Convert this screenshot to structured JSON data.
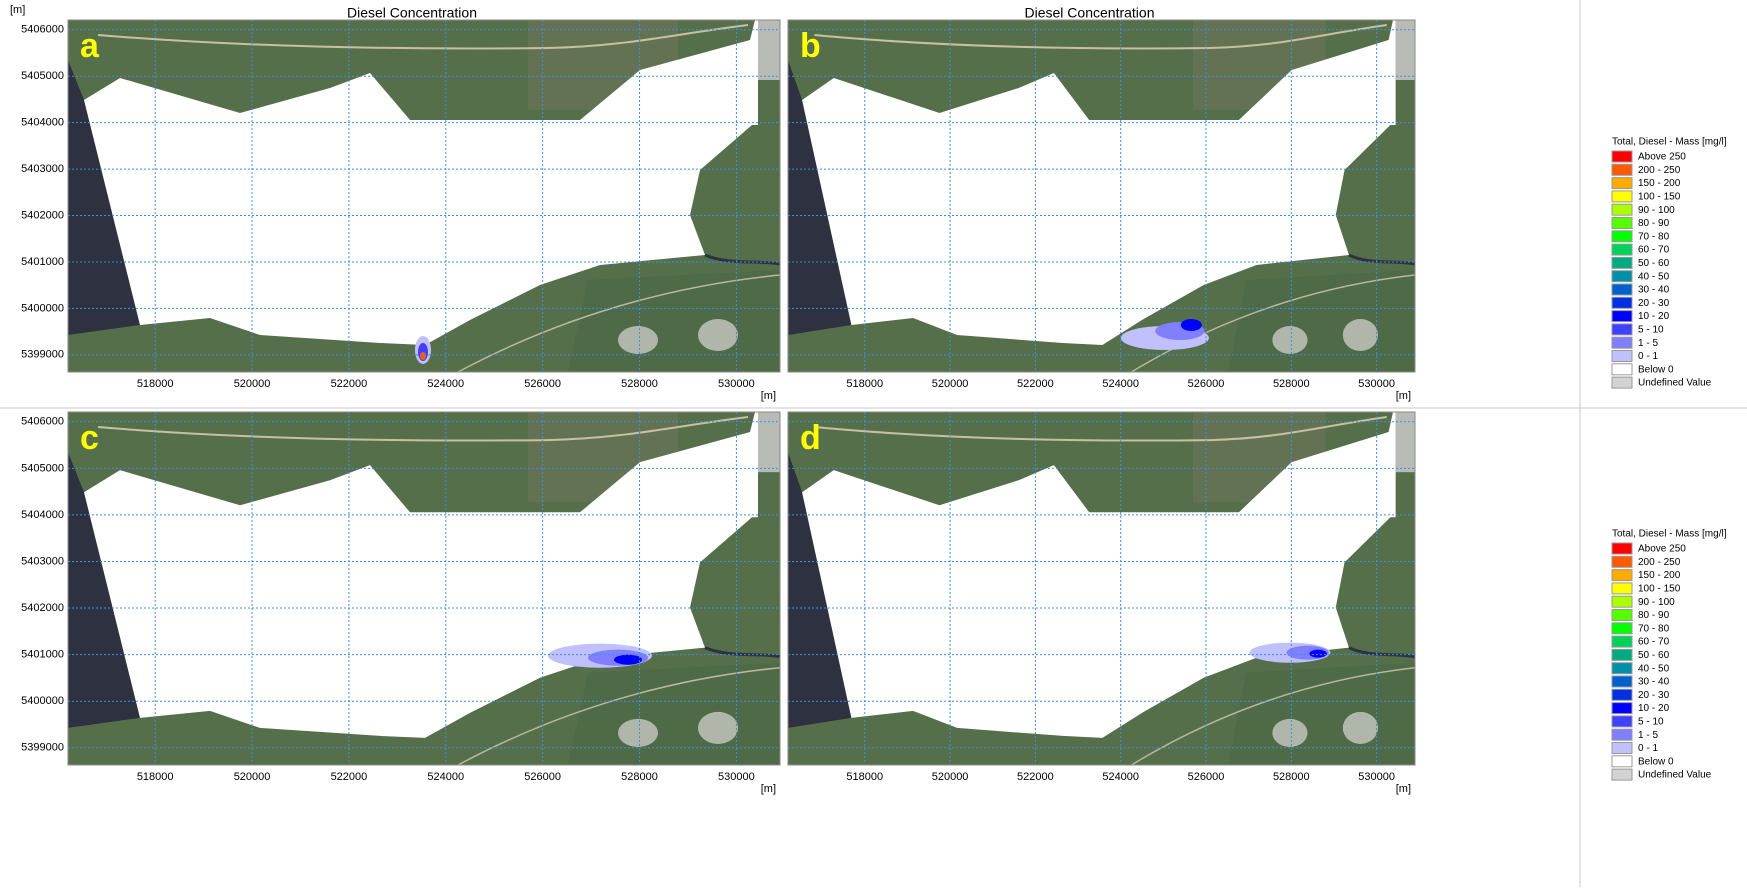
{
  "axes": {
    "x_unit": "[m]",
    "y_unit": "[m]",
    "xlim": [
      516200,
      530900
    ],
    "ylim": [
      5398630,
      5406210
    ],
    "xticks": [
      518000,
      520000,
      522000,
      524000,
      526000,
      528000,
      530000
    ],
    "yticks": [
      5399000,
      5400000,
      5401000,
      5402000,
      5403000,
      5404000,
      5405000,
      5406000
    ],
    "grid": true
  },
  "panels": [
    {
      "label": "a",
      "title": "Diesel Concentration"
    },
    {
      "label": "b",
      "title": "Diesel Concentration"
    },
    {
      "label": "c"
    },
    {
      "label": "d"
    }
  ],
  "legend": {
    "title": "Total, Diesel - Mass [mg/l]",
    "entries": [
      {
        "label": "Above 250",
        "color": "#ff0000"
      },
      {
        "label": "200 - 250",
        "color": "#ff5a00"
      },
      {
        "label": "150 - 200",
        "color": "#ffaa00"
      },
      {
        "label": "100 - 150",
        "color": "#ffff00"
      },
      {
        "label": "90 - 100",
        "color": "#aaff00"
      },
      {
        "label": "80 - 90",
        "color": "#55ff00"
      },
      {
        "label": "70 - 80",
        "color": "#00ff00"
      },
      {
        "label": "60 - 70",
        "color": "#00d25a"
      },
      {
        "label": "50 - 60",
        "color": "#00aa80"
      },
      {
        "label": "40 - 50",
        "color": "#0090aa"
      },
      {
        "label": "30 - 40",
        "color": "#0060cc"
      },
      {
        "label": "20 - 30",
        "color": "#0030e0"
      },
      {
        "label": "10 - 20",
        "color": "#0000ff"
      },
      {
        "label": "5 - 10",
        "color": "#4040ff"
      },
      {
        "label": "1 - 5",
        "color": "#8080ff"
      },
      {
        "label": "0 - 1",
        "color": "#c0c0ff"
      },
      {
        "label": "Below 0",
        "color": "#ffffff"
      },
      {
        "label": "Undefined Value",
        "color": "#d3d3d3"
      }
    ]
  }
}
